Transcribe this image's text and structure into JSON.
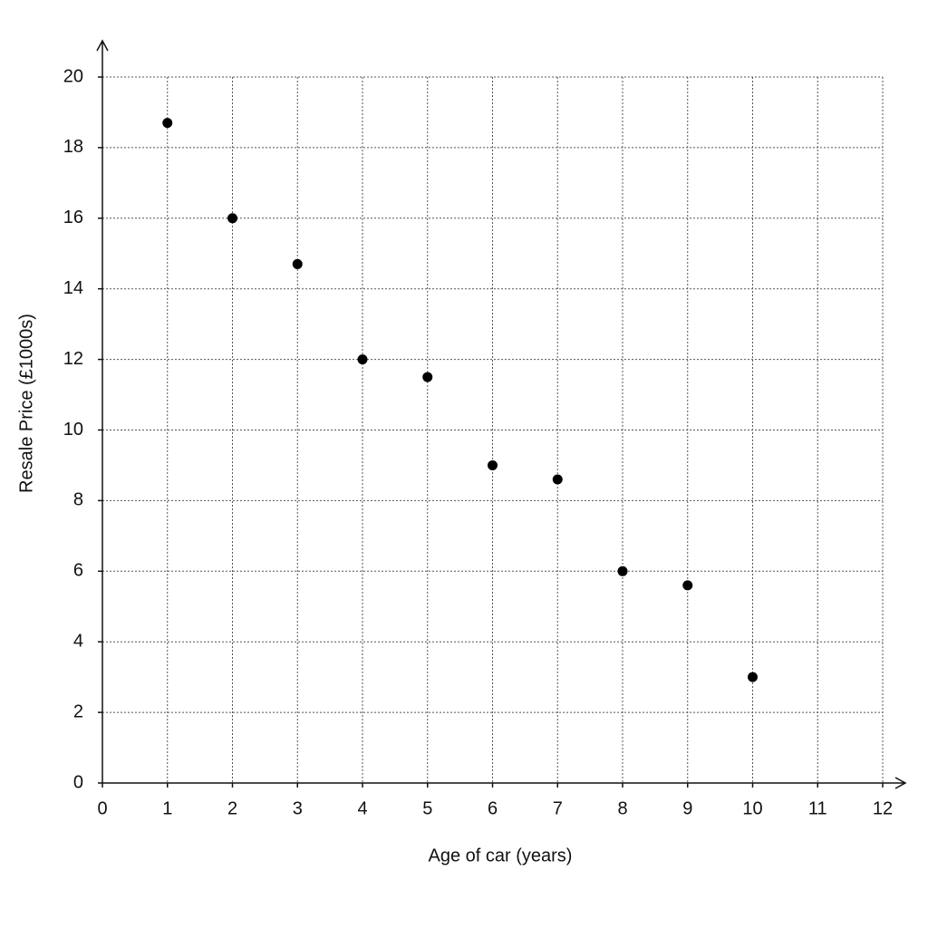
{
  "chart_data": {
    "type": "scatter",
    "x_label": "Age of car (years)",
    "y_label": "Resale Price (£1000s)",
    "x": [
      1,
      2,
      3,
      4,
      5,
      6,
      7,
      8,
      9,
      10
    ],
    "values": [
      18.7,
      16,
      14.7,
      12,
      11.5,
      9,
      8.6,
      6,
      5.6,
      3
    ],
    "color": "#000000",
    "xlim": [
      0,
      12
    ],
    "ylim": [
      0,
      20
    ],
    "xticks": [
      0,
      1,
      2,
      3,
      4,
      5,
      6,
      7,
      8,
      9,
      10,
      11,
      12
    ],
    "yticks": [
      0,
      2,
      4,
      6,
      8,
      10,
      12,
      14,
      16,
      18,
      20
    ],
    "grid": true
  }
}
